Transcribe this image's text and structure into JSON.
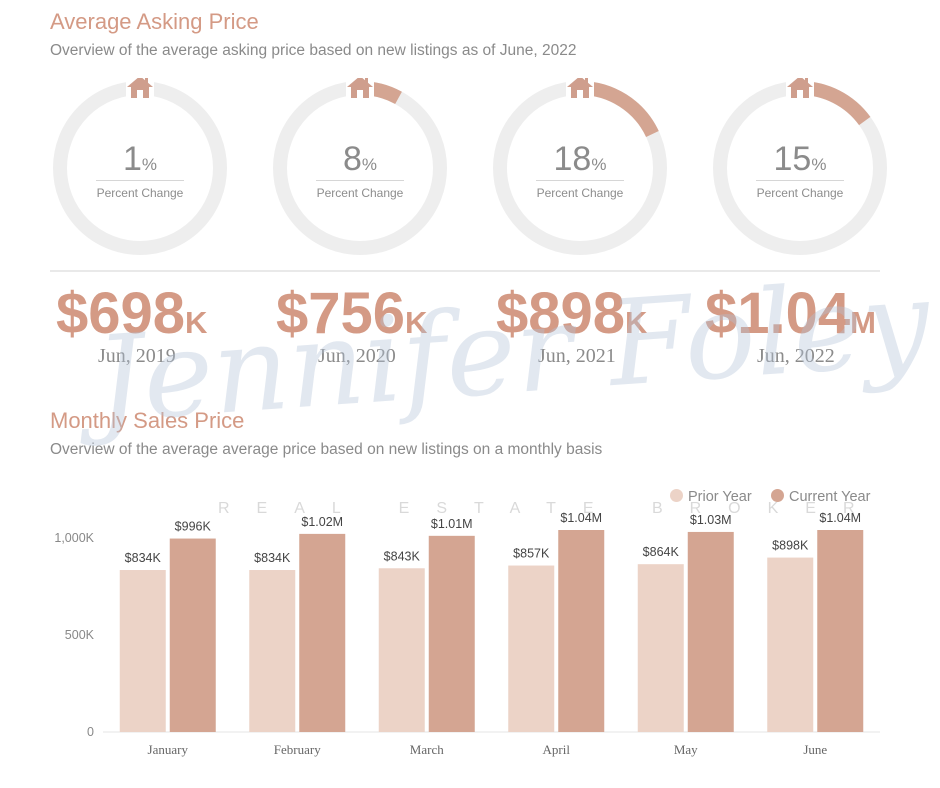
{
  "section1": {
    "title": "Average Asking Price",
    "subtitle": "Overview of the average asking price based on new listings as of June, 2022"
  },
  "donuts": [
    {
      "value": "1",
      "unit": "%",
      "label": "Percent Change",
      "fraction": 0.01
    },
    {
      "value": "8",
      "unit": "%",
      "label": "Percent Change",
      "fraction": 0.08
    },
    {
      "value": "18",
      "unit": "%",
      "label": "Percent Change",
      "fraction": 0.18
    },
    {
      "value": "15",
      "unit": "%",
      "label": "Percent Change",
      "fraction": 0.15
    }
  ],
  "prices": [
    {
      "value": "$698",
      "unit": "K",
      "date": "Jun, 2019"
    },
    {
      "value": "$756",
      "unit": "K",
      "date": "Jun, 2020"
    },
    {
      "value": "$898",
      "unit": "K",
      "date": "Jun, 2021"
    },
    {
      "value": "$1.04",
      "unit": "M",
      "date": "Jun, 2022"
    }
  ],
  "watermark": {
    "name": "Jennifer Foley",
    "tagline": "REAL ESTATE BROKER"
  },
  "section2": {
    "title": "Monthly Sales Price",
    "subtitle": "Overview of the average average price based on new listings on a monthly basis"
  },
  "colors": {
    "accent": "#d49a85",
    "prior": "#ecd3c7",
    "current": "#d4a592",
    "track": "#eeeeee",
    "icon": "#cf9e8d"
  },
  "icons": {
    "donut": "house-icon"
  },
  "chart_data": {
    "type": "bar",
    "categories": [
      "January",
      "February",
      "March",
      "April",
      "May",
      "June"
    ],
    "series": [
      {
        "name": "Prior Year",
        "values": [
          834000,
          834000,
          843000,
          857000,
          864000,
          898000
        ],
        "labels": [
          "$834K",
          "$834K",
          "$843K",
          "$857K",
          "$864K",
          "$898K"
        ]
      },
      {
        "name": "Current Year",
        "values": [
          996000,
          1020000,
          1010000,
          1040000,
          1030000,
          1040000
        ],
        "labels": [
          "$996K",
          "$1.02M",
          "$1.01M",
          "$1.04M",
          "$1.03M",
          "$1.04M"
        ]
      }
    ],
    "yticks": [
      {
        "value": 0,
        "label": "0"
      },
      {
        "value": 500000,
        "label": "500K"
      },
      {
        "value": 1000000,
        "label": "1,000K"
      }
    ],
    "ylim": [
      0,
      1040000
    ],
    "legend": "top-right",
    "grid": false
  }
}
